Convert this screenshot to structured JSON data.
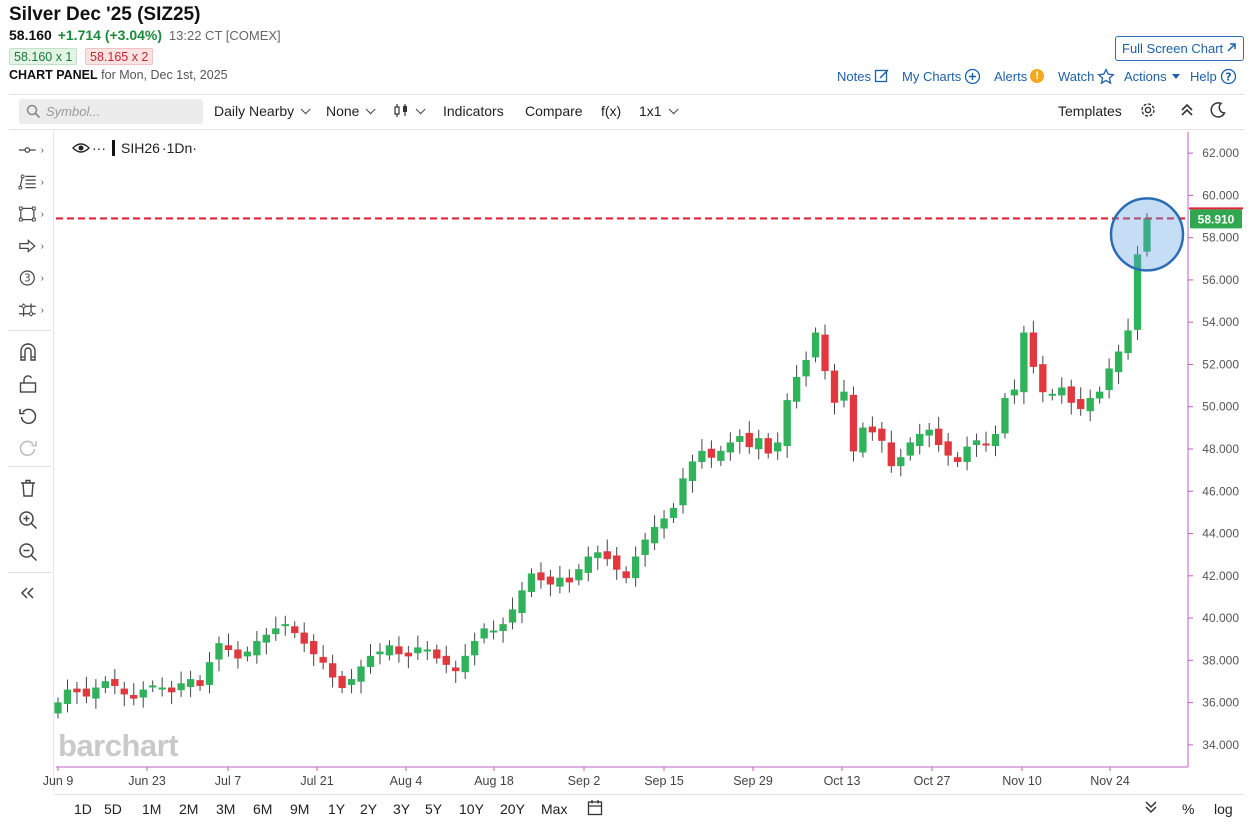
{
  "header": {
    "title": "Silver Dec '25 (SIZ25)",
    "last": "58.160",
    "change": "+1.714 (+3.04%)",
    "time_exchange": "13:22 CT [COMEX]",
    "bid": "58.160 x 1",
    "ask": "58.165 x 2",
    "panel_label": "CHART PANEL",
    "panel_date": "for Mon, Dec 1st, 2025",
    "fullscreen_label": "Full Screen Chart"
  },
  "topnav": {
    "notes": "Notes",
    "my_charts": "My Charts",
    "alerts": "Alerts",
    "alerts_badge": "!",
    "watch": "Watch",
    "actions": "Actions",
    "help": "Help"
  },
  "toolbar": {
    "search_placeholder": "Symbol...",
    "interval": "Daily Nearby",
    "overlay": "None",
    "indicators": "Indicators",
    "compare": "Compare",
    "fx": "f(x)",
    "layout": "1x1",
    "templates": "Templates"
  },
  "legend": {
    "symbol": "SIH26",
    "interval": "·1Dn·",
    "dots": "···"
  },
  "watermark": "barchart",
  "price_label": "58.910",
  "colors": {
    "up": "#2fb25a",
    "down": "#e0383e",
    "refline": "#e0253a",
    "highlight": "#2a6db5",
    "axis": "#c05cc0"
  },
  "ranges": [
    "1D",
    "5D",
    "1M",
    "2M",
    "3M",
    "6M",
    "9M",
    "1Y",
    "2Y",
    "3Y",
    "5Y",
    "10Y",
    "20Y",
    "Max"
  ],
  "bottom_right": {
    "percent": "%",
    "log": "log"
  },
  "chart_data": {
    "type": "candlestick",
    "symbol": "SIH26",
    "interval": "1Dn",
    "x_tick_labels": [
      "Jun 9",
      "Jun 23",
      "Jul 7",
      "Jul 21",
      "Aug 4",
      "Aug 18",
      "Sep 2",
      "Sep 15",
      "Sep 29",
      "Oct 13",
      "Oct 27",
      "Nov 10",
      "Nov 24"
    ],
    "y_ticks": [
      "34.000",
      "36.000",
      "38.000",
      "40.000",
      "42.000",
      "44.000",
      "46.000",
      "48.000",
      "50.000",
      "52.000",
      "54.000",
      "56.000",
      "58.000",
      "60.000",
      "62.000"
    ],
    "ylim": [
      33,
      63
    ],
    "reference_line": 58.91,
    "close_path": [
      36.0,
      36.6,
      36.5,
      36.3,
      36.7,
      37.0,
      36.8,
      36.4,
      36.2,
      36.6,
      36.8,
      36.7,
      36.5,
      36.9,
      37.1,
      36.8,
      37.9,
      38.8,
      38.5,
      38.1,
      38.4,
      38.9,
      39.2,
      39.5,
      39.7,
      39.3,
      38.8,
      38.3,
      37.9,
      37.2,
      36.7,
      37.1,
      37.7,
      38.2,
      38.4,
      38.7,
      38.3,
      38.2,
      38.6,
      38.5,
      38.1,
      37.8,
      37.5,
      38.2,
      38.9,
      39.5,
      39.4,
      39.7,
      40.4,
      41.3,
      42.1,
      41.8,
      41.6,
      41.9,
      41.7,
      42.3,
      42.9,
      43.1,
      42.8,
      42.3,
      41.9,
      42.9,
      43.7,
      44.3,
      44.7,
      45.2,
      46.6,
      47.4,
      47.9,
      47.6,
      47.9,
      48.3,
      48.6,
      48.1,
      48.5,
      47.8,
      48.3,
      50.3,
      51.4,
      52.2,
      53.5,
      51.7,
      50.2,
      50.7,
      47.9,
      49.0,
      48.8,
      48.4,
      47.2,
      47.6,
      48.3,
      48.7,
      48.9,
      48.2,
      47.7,
      47.4,
      48.1,
      48.4,
      48.2,
      48.7,
      50.4,
      50.8,
      53.5,
      51.9,
      50.7,
      50.6,
      50.9,
      50.2,
      49.9,
      50.4,
      50.7,
      51.8,
      52.6,
      53.6,
      57.2,
      58.91
    ]
  }
}
